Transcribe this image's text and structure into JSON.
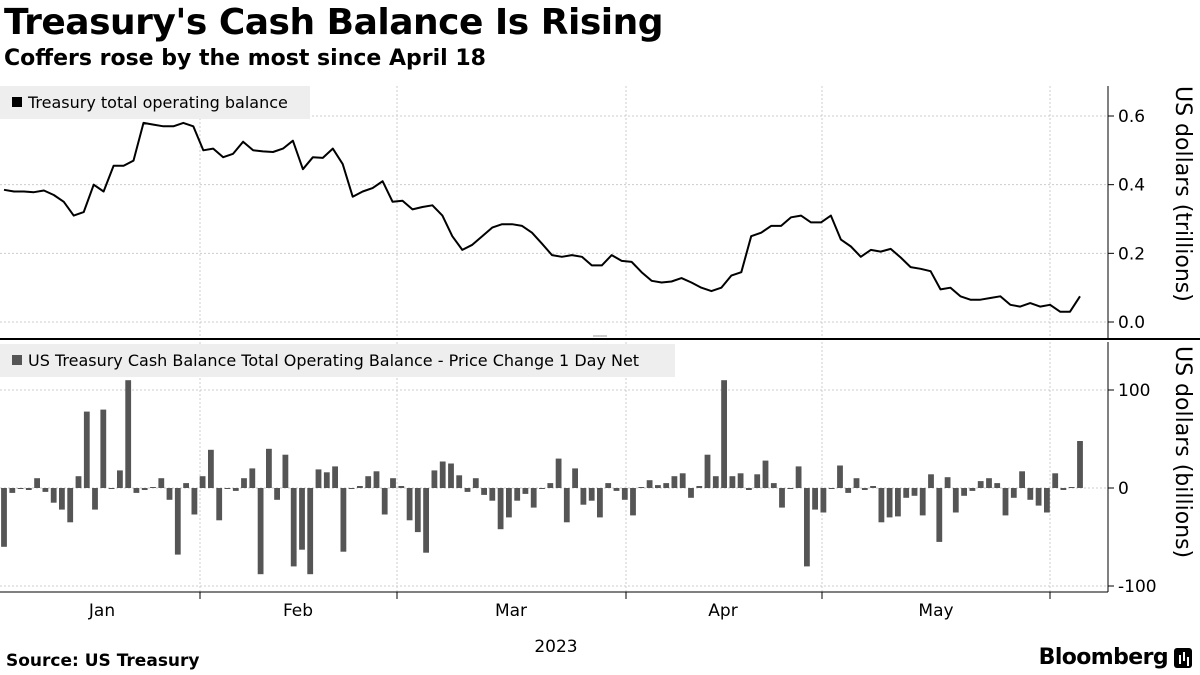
{
  "title": "Treasury's Cash Balance Is Rising",
  "subtitle": "Coffers rose by the most since April 18",
  "source": "Source: US Treasury",
  "brand": "Bloomberg",
  "colors": {
    "line": "#000000",
    "bars": "#555555",
    "grid": "#cccccc",
    "legend_bg": "#eeeeee"
  },
  "chart_data": [
    {
      "type": "line",
      "title": "Treasury's Cash Balance Is Rising",
      "legend": "Treasury total operating balance",
      "ylabel": "US dollars (trillions)",
      "ylim": [
        -0.02,
        0.7
      ],
      "yticks": [
        0.0,
        0.2,
        0.4,
        0.6
      ],
      "ytick_labels": [
        "0.0",
        "0.2",
        "0.4",
        "0.6"
      ],
      "series": [
        {
          "values": [
            0.385,
            0.38,
            0.38,
            0.378,
            0.383,
            0.37,
            0.35,
            0.31,
            0.32,
            0.4,
            0.38,
            0.455,
            0.455,
            0.47,
            0.58,
            0.575,
            0.57,
            0.57,
            0.58,
            0.57,
            0.5,
            0.505,
            0.48,
            0.49,
            0.525,
            0.5,
            0.497,
            0.495,
            0.505,
            0.528,
            0.445,
            0.48,
            0.478,
            0.505,
            0.46,
            0.365,
            0.38,
            0.39,
            0.41,
            0.35,
            0.353,
            0.328,
            0.335,
            0.34,
            0.31,
            0.25,
            0.21,
            0.225,
            0.25,
            0.275,
            0.285,
            0.285,
            0.28,
            0.26,
            0.228,
            0.195,
            0.19,
            0.195,
            0.19,
            0.165,
            0.165,
            0.195,
            0.178,
            0.175,
            0.145,
            0.12,
            0.115,
            0.118,
            0.128,
            0.115,
            0.1,
            0.09,
            0.1,
            0.135,
            0.145,
            0.25,
            0.26,
            0.28,
            0.28,
            0.305,
            0.31,
            0.29,
            0.29,
            0.31,
            0.24,
            0.22,
            0.19,
            0.21,
            0.205,
            0.213,
            0.188,
            0.16,
            0.155,
            0.148,
            0.095,
            0.1,
            0.075,
            0.065,
            0.065,
            0.07,
            0.075,
            0.05,
            0.045,
            0.055,
            0.045,
            0.05,
            0.03,
            0.03,
            0.075
          ]
        }
      ]
    },
    {
      "type": "bar",
      "legend": "US Treasury Cash Balance Total Operating Balance - Price Change 1 Day Net",
      "ylabel": "US dollars (billions)",
      "ylim": [
        -105,
        150
      ],
      "yticks": [
        -100,
        0,
        100
      ],
      "ytick_labels": [
        "-100",
        "0",
        "100"
      ],
      "xlabel": "2023",
      "x_month_labels": [
        "Jan",
        "Feb",
        "Mar",
        "Apr",
        "May"
      ],
      "series": [
        {
          "values": [
            -60,
            -5,
            0,
            -2,
            10,
            -4,
            -15,
            -22,
            -35,
            12,
            78,
            -22,
            80,
            0,
            18,
            110,
            -5,
            -2,
            1,
            10,
            -12,
            -68,
            5,
            -27,
            12,
            39,
            -33,
            0,
            -3,
            10,
            20,
            -88,
            40,
            -12,
            34,
            -80,
            -63,
            -88,
            19,
            16,
            22,
            -65,
            -1,
            2,
            12,
            17,
            -27,
            10,
            2,
            -33,
            -45,
            -66,
            18,
            27,
            25,
            13,
            -4,
            10,
            -7,
            -13,
            -42,
            -30,
            -13,
            -6,
            -20,
            0,
            5,
            30,
            -35,
            20,
            -17,
            -13,
            -30,
            5,
            -3,
            -12,
            -28,
            1,
            8,
            3,
            5,
            12,
            15,
            -10,
            2,
            34,
            12,
            110,
            12,
            15,
            -2,
            14,
            28,
            5,
            -20,
            0,
            22,
            -80,
            -22,
            -25,
            -1,
            23,
            -5,
            10,
            -2,
            2,
            -35,
            -30,
            -29,
            -10,
            -8,
            -28,
            14,
            -55,
            11,
            -25,
            -8,
            -3,
            7,
            10,
            5,
            -28,
            -10,
            17,
            -12,
            -18,
            -25,
            15,
            -2,
            1,
            48
          ],
          "name": ""
        }
      ]
    }
  ]
}
